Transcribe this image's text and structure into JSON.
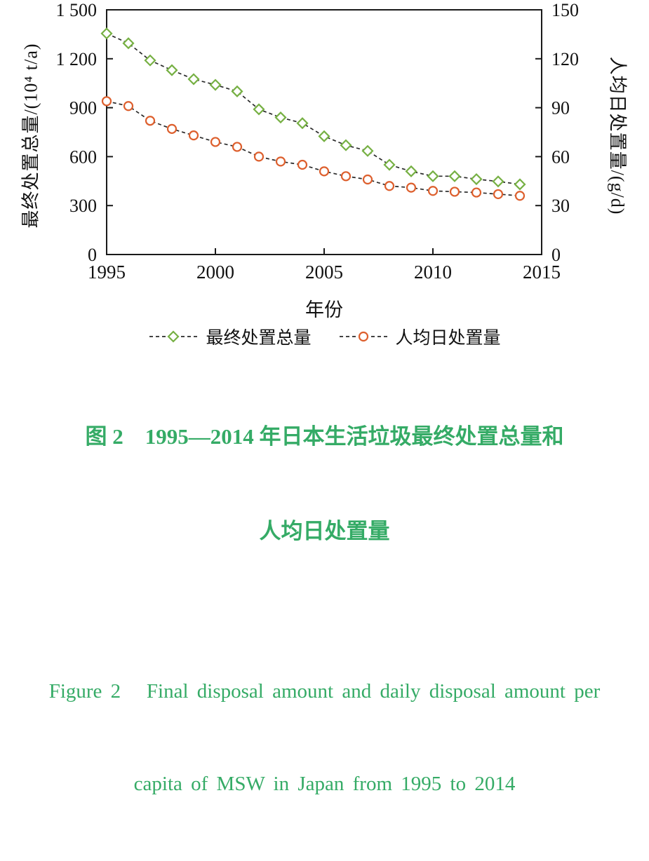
{
  "colors": {
    "caption_green": "#35ab66",
    "axis_line": "#1a1a1a",
    "series_line": "#2a2a2a",
    "diamond_green": "#76b043",
    "circle_orange": "#dd5f2d"
  },
  "chart_data": {
    "type": "line",
    "x": [
      1995,
      1996,
      1997,
      1998,
      1999,
      2000,
      2001,
      2002,
      2003,
      2004,
      2005,
      2006,
      2007,
      2008,
      2009,
      2010,
      2011,
      2012,
      2013,
      2014
    ],
    "x_axis": {
      "label": "年份",
      "range": [
        1995,
        2015
      ],
      "tick_values": [
        1995,
        2000,
        2005,
        2010,
        2015
      ],
      "tick_labels": [
        "1995",
        "2000",
        "2005",
        "2010",
        "2015"
      ]
    },
    "left_axis": {
      "label": "最终处置总量/(10⁴ t/a)",
      "range": [
        0,
        1500
      ],
      "tick_values": [
        0,
        300,
        600,
        900,
        1200,
        1500
      ],
      "tick_labels": [
        "0",
        "300",
        "600",
        "900",
        "1 200",
        "1 500"
      ]
    },
    "right_axis": {
      "label": "人均日处置量/(g/d)",
      "range": [
        0,
        150
      ],
      "tick_values": [
        0,
        30,
        60,
        90,
        120,
        150
      ],
      "tick_labels": [
        "0",
        "30",
        "60",
        "90",
        "120",
        "150"
      ]
    },
    "series": [
      {
        "name": "最终处置总量",
        "axis": "left",
        "marker": "diamond",
        "color": "#76b043",
        "line_color": "#2a2a2a",
        "line_style": "dashed",
        "values": [
          1355,
          1295,
          1190,
          1130,
          1075,
          1040,
          1000,
          890,
          840,
          805,
          725,
          670,
          635,
          550,
          510,
          480,
          480,
          462,
          448,
          430
        ]
      },
      {
        "name": "人均日处置量",
        "axis": "right",
        "marker": "circle",
        "color": "#dd5f2d",
        "line_color": "#2a2a2a",
        "line_style": "dashed",
        "values": [
          94,
          91,
          82,
          77,
          73,
          69,
          66,
          60,
          57,
          55,
          51,
          48,
          46,
          42,
          41,
          39,
          38.5,
          38,
          37,
          36
        ]
      }
    ],
    "grid": false,
    "legend_position": "bottom",
    "title": ""
  },
  "captions": {
    "zh_line1": "图 2　1995—2014 年日本生活垃圾最终处置总量和",
    "zh_line2": "人均日处置量",
    "en_line1": "Figure 2   Final disposal amount and daily disposal amount per",
    "en_line2": "capita of MSW in Japan from 1995 to 2014"
  }
}
